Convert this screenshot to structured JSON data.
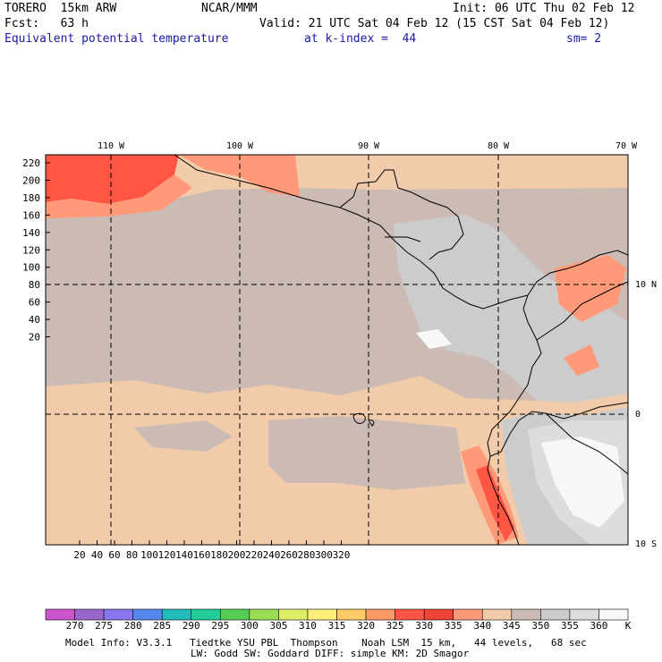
{
  "header": {
    "model": "TORERO  15km ARW",
    "org": "NCAR/MMM",
    "init": "Init: 06 UTC Thu 02 Feb 12",
    "fcst": "Fcst:   63 h",
    "valid": "Valid: 21 UTC Sat 04 Feb 12 (15 CST Sat 04 Feb 12)",
    "field": "Equivalent potential temperature",
    "level": "at k-index =  44",
    "smoothing": "sm= 2"
  },
  "map": {
    "top_lon_labels": [
      "110 W",
      "100 W",
      "90 W",
      "80 W",
      "70 W"
    ],
    "right_lat_labels": [
      "10 N",
      "0",
      "10 S"
    ],
    "y_ticks": [
      "220",
      "200",
      "180",
      "160",
      "140",
      "120",
      "100",
      "80",
      "60",
      "40",
      "20"
    ],
    "x_ticks": [
      "20",
      "40",
      "60",
      "80",
      "100",
      "120",
      "140",
      "160",
      "180",
      "200",
      "220",
      "240",
      "260",
      "280",
      "300",
      "320"
    ],
    "grid_lines_lon_deg": [
      110,
      100,
      90,
      80
    ],
    "grid_lines_lat_deg": [
      10,
      0
    ]
  },
  "legend": {
    "labels": [
      "270",
      "275",
      "280",
      "285",
      "290",
      "295",
      "300",
      "305",
      "310",
      "315",
      "320",
      "325",
      "330",
      "335",
      "340",
      "345",
      "350",
      "355",
      "360",
      "K"
    ],
    "colors": [
      "#cc55cc",
      "#9966cc",
      "#8877ee",
      "#5588ee",
      "#22bbbb",
      "#22cc99",
      "#55cc55",
      "#99dd55",
      "#ddee66",
      "#ffee77",
      "#ffcc66",
      "#ff9966",
      "#ff5544",
      "#ee4433",
      "#ff9977",
      "#f2ccaa",
      "#ccbbb4",
      "#cccccc",
      "#dddddd",
      "#f8f8f8"
    ]
  },
  "footer": {
    "line1": "Model Info: V3.3.1   Tiedtke YSU PBL  Thompson    Noah LSM  15 km,   44 levels,   68 sec",
    "line2": "LW: Godd SW: Goddard DIFF: simple KM: 2D Smagor"
  }
}
